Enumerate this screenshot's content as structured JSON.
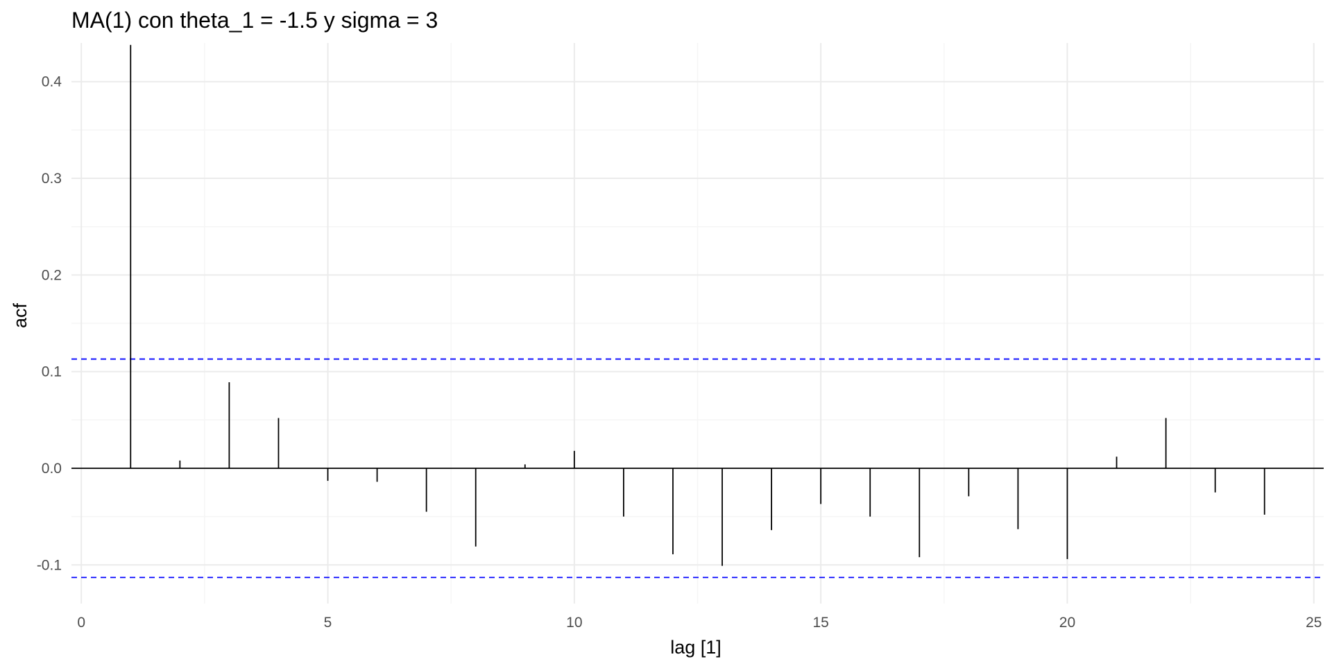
{
  "chart_data": {
    "type": "bar",
    "title": "MA(1) con theta_1 = -1.5 y sigma = 3",
    "xlabel": "lag [1]",
    "ylabel": "acf",
    "xlim": [
      -0.2,
      25.2
    ],
    "ylim": [
      -0.14,
      0.44
    ],
    "x_ticks": [
      0,
      5,
      10,
      15,
      20,
      25
    ],
    "x_tick_labels": [
      "0",
      "5",
      "10",
      "15",
      "20",
      "25"
    ],
    "y_ticks": [
      -0.1,
      0.0,
      0.1,
      0.2,
      0.3,
      0.4
    ],
    "y_tick_labels": [
      "-0.1",
      "0.0",
      "0.1",
      "0.2",
      "0.3",
      "0.4"
    ],
    "grid": true,
    "lags": [
      1,
      2,
      3,
      4,
      5,
      6,
      7,
      8,
      9,
      10,
      11,
      12,
      13,
      14,
      15,
      16,
      17,
      18,
      19,
      20,
      21,
      22,
      23,
      24
    ],
    "acf": [
      0.438,
      0.008,
      0.089,
      0.052,
      -0.013,
      -0.014,
      -0.045,
      -0.081,
      0.004,
      0.018,
      -0.05,
      -0.089,
      -0.101,
      -0.064,
      -0.037,
      -0.05,
      -0.092,
      -0.029,
      -0.063,
      -0.094,
      0.012,
      0.052,
      -0.025,
      -0.048
    ],
    "confidence_bounds": [
      0.113,
      -0.113
    ],
    "colors": {
      "spike": "#000000",
      "zero_line": "#000000",
      "bound": "#0000ff",
      "grid_major": "#ebebeb",
      "grid_minor": "#f5f5f5",
      "background": "#ffffff"
    }
  }
}
